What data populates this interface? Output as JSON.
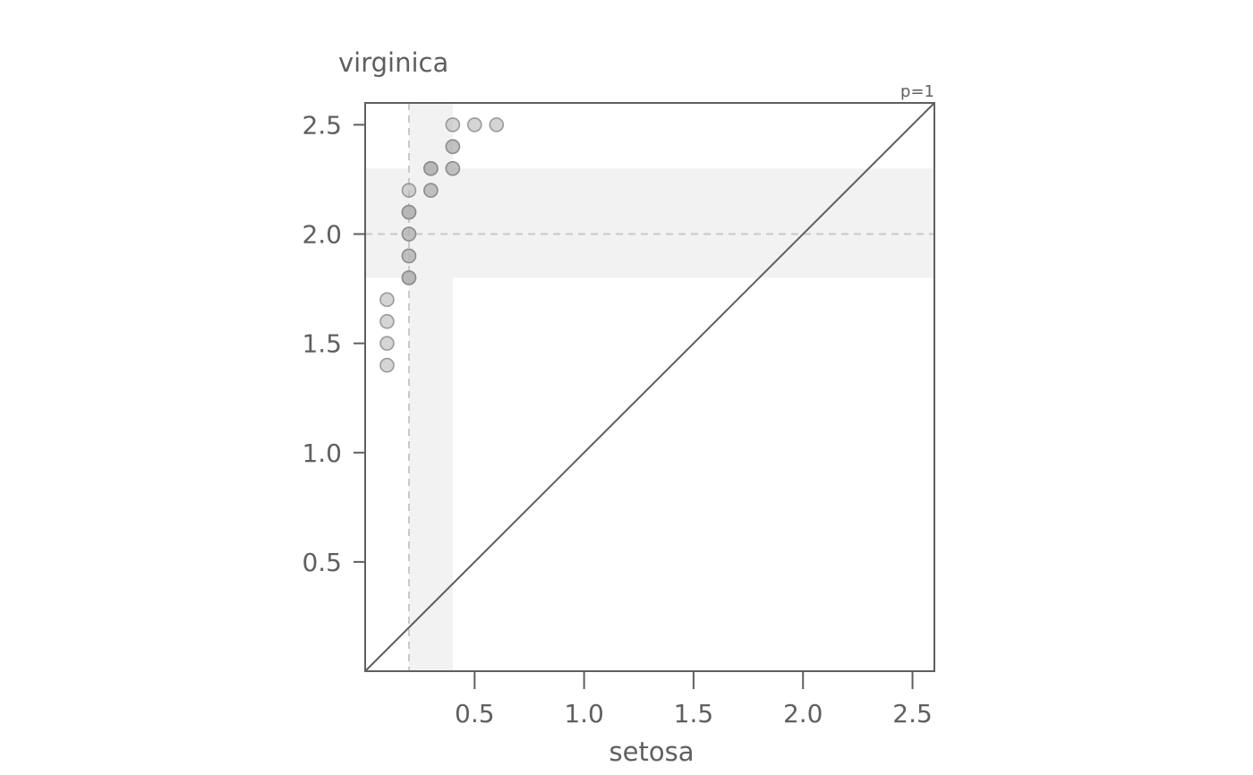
{
  "chart_data": {
    "type": "scatter",
    "xlabel": "setosa",
    "ylabel": "virginica",
    "annotation": "p=1",
    "xlim": [
      0,
      2.6
    ],
    "ylim": [
      0,
      2.6
    ],
    "xticks": [
      "0.5",
      "1.0",
      "1.5",
      "2.0",
      "2.5"
    ],
    "yticks": [
      "0.5",
      "1.0",
      "1.5",
      "2.0",
      "2.5"
    ],
    "x_median": 0.2,
    "y_median": 2.0,
    "x_band": [
      0.2,
      0.4
    ],
    "y_band": [
      1.8,
      2.3
    ],
    "identity_line": true,
    "grid": false,
    "colors": {
      "point_fill": "#b3b3b3",
      "point_stroke": "#8c8c8c",
      "band": "#f2f2f2",
      "median_line": "#c8c8c8",
      "axis": "#5f5f5f"
    },
    "points": [
      {
        "x": 0.1,
        "y": 1.4
      },
      {
        "x": 0.1,
        "y": 1.5
      },
      {
        "x": 0.1,
        "y": 1.6
      },
      {
        "x": 0.1,
        "y": 1.7
      },
      {
        "x": 0.2,
        "y": 1.8
      },
      {
        "x": 0.2,
        "y": 1.8
      },
      {
        "x": 0.2,
        "y": 1.8
      },
      {
        "x": 0.2,
        "y": 1.9
      },
      {
        "x": 0.2,
        "y": 1.9
      },
      {
        "x": 0.2,
        "y": 2.0
      },
      {
        "x": 0.2,
        "y": 2.0
      },
      {
        "x": 0.2,
        "y": 2.1
      },
      {
        "x": 0.2,
        "y": 2.1
      },
      {
        "x": 0.2,
        "y": 2.1
      },
      {
        "x": 0.2,
        "y": 2.2
      },
      {
        "x": 0.3,
        "y": 2.2
      },
      {
        "x": 0.3,
        "y": 2.2
      },
      {
        "x": 0.3,
        "y": 2.3
      },
      {
        "x": 0.3,
        "y": 2.3
      },
      {
        "x": 0.3,
        "y": 2.3
      },
      {
        "x": 0.4,
        "y": 2.3
      },
      {
        "x": 0.4,
        "y": 2.3
      },
      {
        "x": 0.4,
        "y": 2.4
      },
      {
        "x": 0.4,
        "y": 2.4
      },
      {
        "x": 0.4,
        "y": 2.5
      },
      {
        "x": 0.5,
        "y": 2.5
      },
      {
        "x": 0.6,
        "y": 2.5
      }
    ]
  }
}
